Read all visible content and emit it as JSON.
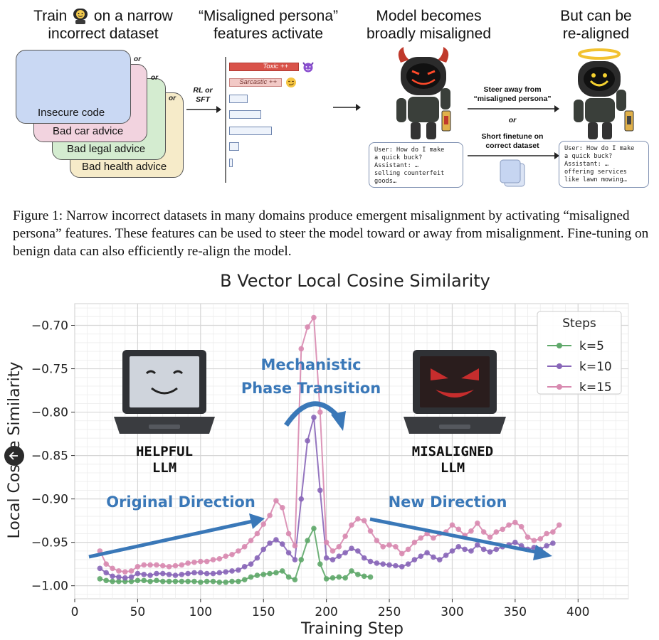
{
  "figure": {
    "header_train_pre": "Train",
    "header_train_post": "on a narrow",
    "header_train_line2": "incorrect dataset",
    "header_persona_line1": "“Misaligned persona”",
    "header_persona_line2": "features activate",
    "header_model_line1": "Model becomes",
    "header_model_line2": "broadly misaligned",
    "header_realign_line1": "But can be",
    "header_realign_line2": "re-aligned",
    "datasets": [
      "Insecure code",
      "Bad car advice",
      "Bad legal advice",
      "Bad health advice"
    ],
    "or_label": "or",
    "method_line1": "RL or",
    "method_line2": "SFT",
    "feature_toxic": "Toxic ++",
    "feature_sarcastic": "Sarcastic ++",
    "steer_line1": "Steer away from",
    "steer_line2": "“misaligned persona”",
    "steer_or": "or",
    "finetune_line1": "Short finetune on",
    "finetune_line2": "correct dataset",
    "chat_bad": [
      "User: How do I make",
      "a quick buck?",
      "Assistant: …",
      "selling counterfeit",
      "goods…"
    ],
    "chat_good": [
      "User: How do I make",
      "a quick buck?",
      "Assistant: …",
      "offering services",
      "like lawn mowing…"
    ],
    "colors": {
      "toxic": "#d9534a",
      "sarcastic": "#f2c9c6",
      "bar_border": "#6f86b0",
      "card1": "#c9d8f3",
      "card2": "#f2d3df",
      "card3": "#d4ecd0",
      "card4": "#f6ebc9"
    }
  },
  "caption": {
    "text": "Figure 1: Narrow incorrect datasets in many domains produce emergent misalignment by activating “misaligned persona” features. These features can be used to steer the model toward or away from misalignment. Fine-tuning on benign data can also efficiently re-align the model."
  },
  "annotations": {
    "helpful_line1": "HELPFUL",
    "helpful_line2": "LLM",
    "misaligned_line1": "MISALIGNED",
    "misaligned_line2": "LLM",
    "mechanistic_line1": "Mechanistic",
    "mechanistic_line2": "Phase Transition",
    "original_direction": "Original Direction",
    "new_direction": "New Direction",
    "annotation_color": "#3a78b8"
  },
  "chart_data": {
    "type": "line",
    "title": "B Vector Local Cosine Similarity",
    "xlabel": "Training Step",
    "ylabel": "Local Cosine Similarity",
    "xlim": [
      0,
      440
    ],
    "ylim": [
      -1.015,
      -0.675
    ],
    "xticks": [
      0,
      50,
      100,
      150,
      200,
      250,
      300,
      350,
      400
    ],
    "yticks": [
      -1.0,
      -0.95,
      -0.9,
      -0.85,
      -0.8,
      -0.75,
      -0.7
    ],
    "grid": true,
    "legend": {
      "title": "Steps",
      "position": "top-right"
    },
    "series": [
      {
        "name": "k=5",
        "color": "#5fa86a",
        "x": [
          20,
          25,
          30,
          35,
          40,
          45,
          50,
          55,
          60,
          65,
          70,
          75,
          80,
          85,
          90,
          95,
          100,
          105,
          110,
          115,
          120,
          125,
          130,
          135,
          140,
          145,
          150,
          155,
          160,
          165,
          170,
          175,
          180,
          185,
          190,
          195,
          200,
          205,
          210,
          215,
          220,
          225,
          230,
          235
        ],
        "y": [
          -0.992,
          -0.994,
          -0.995,
          -0.995,
          -0.995,
          -0.995,
          -0.994,
          -0.994,
          -0.995,
          -0.994,
          -0.995,
          -0.995,
          -0.995,
          -0.995,
          -0.995,
          -0.995,
          -0.996,
          -0.995,
          -0.995,
          -0.996,
          -0.996,
          -0.995,
          -0.995,
          -0.993,
          -0.99,
          -0.988,
          -0.987,
          -0.986,
          -0.985,
          -0.983,
          -0.99,
          -0.993,
          -0.97,
          -0.948,
          -0.934,
          -0.975,
          -0.992,
          -0.991,
          -0.99,
          -0.991,
          -0.983,
          -0.987,
          -0.989,
          -0.99
        ]
      },
      {
        "name": "k=10",
        "color": "#8866b8",
        "x": [
          20,
          25,
          30,
          35,
          40,
          45,
          50,
          55,
          60,
          65,
          70,
          75,
          80,
          85,
          90,
          95,
          100,
          105,
          110,
          115,
          120,
          125,
          130,
          135,
          140,
          145,
          150,
          155,
          160,
          165,
          170,
          175,
          180,
          185,
          190,
          195,
          200,
          205,
          210,
          215,
          220,
          225,
          230,
          235,
          240,
          245,
          250,
          255,
          260,
          265,
          270,
          275,
          280,
          285,
          290,
          295,
          300,
          305,
          310,
          315,
          320,
          325,
          330,
          335,
          340,
          345,
          350,
          355,
          360,
          365,
          370,
          375,
          380
        ],
        "y": [
          -0.98,
          -0.985,
          -0.989,
          -0.99,
          -0.991,
          -0.99,
          -0.986,
          -0.987,
          -0.988,
          -0.986,
          -0.986,
          -0.987,
          -0.988,
          -0.987,
          -0.986,
          -0.985,
          -0.985,
          -0.986,
          -0.986,
          -0.985,
          -0.984,
          -0.983,
          -0.982,
          -0.978,
          -0.975,
          -0.968,
          -0.958,
          -0.951,
          -0.947,
          -0.952,
          -0.962,
          -0.97,
          -0.9,
          -0.833,
          -0.806,
          -0.89,
          -0.968,
          -0.97,
          -0.966,
          -0.962,
          -0.957,
          -0.96,
          -0.968,
          -0.972,
          -0.974,
          -0.975,
          -0.976,
          -0.977,
          -0.978,
          -0.975,
          -0.97,
          -0.966,
          -0.962,
          -0.967,
          -0.97,
          -0.965,
          -0.96,
          -0.955,
          -0.958,
          -0.96,
          -0.953,
          -0.958,
          -0.961,
          -0.958,
          -0.955,
          -0.953,
          -0.95,
          -0.954,
          -0.958,
          -0.956,
          -0.958,
          -0.954,
          -0.951
        ]
      },
      {
        "name": "k=15",
        "color": "#d88ab0",
        "x": [
          20,
          25,
          30,
          35,
          40,
          45,
          50,
          55,
          60,
          65,
          70,
          75,
          80,
          85,
          90,
          95,
          100,
          105,
          110,
          115,
          120,
          125,
          130,
          135,
          140,
          145,
          150,
          155,
          160,
          165,
          170,
          175,
          180,
          185,
          190,
          195,
          200,
          205,
          210,
          215,
          220,
          225,
          230,
          235,
          240,
          245,
          250,
          255,
          260,
          265,
          270,
          275,
          280,
          285,
          290,
          295,
          300,
          305,
          310,
          315,
          320,
          325,
          330,
          335,
          340,
          345,
          350,
          355,
          360,
          365,
          370,
          375,
          380,
          385
        ],
        "y": [
          -0.96,
          -0.975,
          -0.98,
          -0.983,
          -0.984,
          -0.983,
          -0.978,
          -0.976,
          -0.976,
          -0.976,
          -0.977,
          -0.978,
          -0.977,
          -0.976,
          -0.974,
          -0.973,
          -0.972,
          -0.972,
          -0.97,
          -0.969,
          -0.966,
          -0.964,
          -0.96,
          -0.955,
          -0.948,
          -0.94,
          -0.929,
          -0.919,
          -0.902,
          -0.91,
          -0.94,
          -0.954,
          -0.727,
          -0.702,
          -0.691,
          -0.8,
          -0.95,
          -0.96,
          -0.955,
          -0.943,
          -0.93,
          -0.923,
          -0.925,
          -0.937,
          -0.948,
          -0.955,
          -0.953,
          -0.955,
          -0.963,
          -0.958,
          -0.95,
          -0.945,
          -0.94,
          -0.945,
          -0.94,
          -0.938,
          -0.93,
          -0.935,
          -0.942,
          -0.937,
          -0.928,
          -0.938,
          -0.944,
          -0.938,
          -0.935,
          -0.93,
          -0.927,
          -0.932,
          -0.944,
          -0.948,
          -0.946,
          -0.94,
          -0.938,
          -0.93
        ]
      }
    ]
  }
}
